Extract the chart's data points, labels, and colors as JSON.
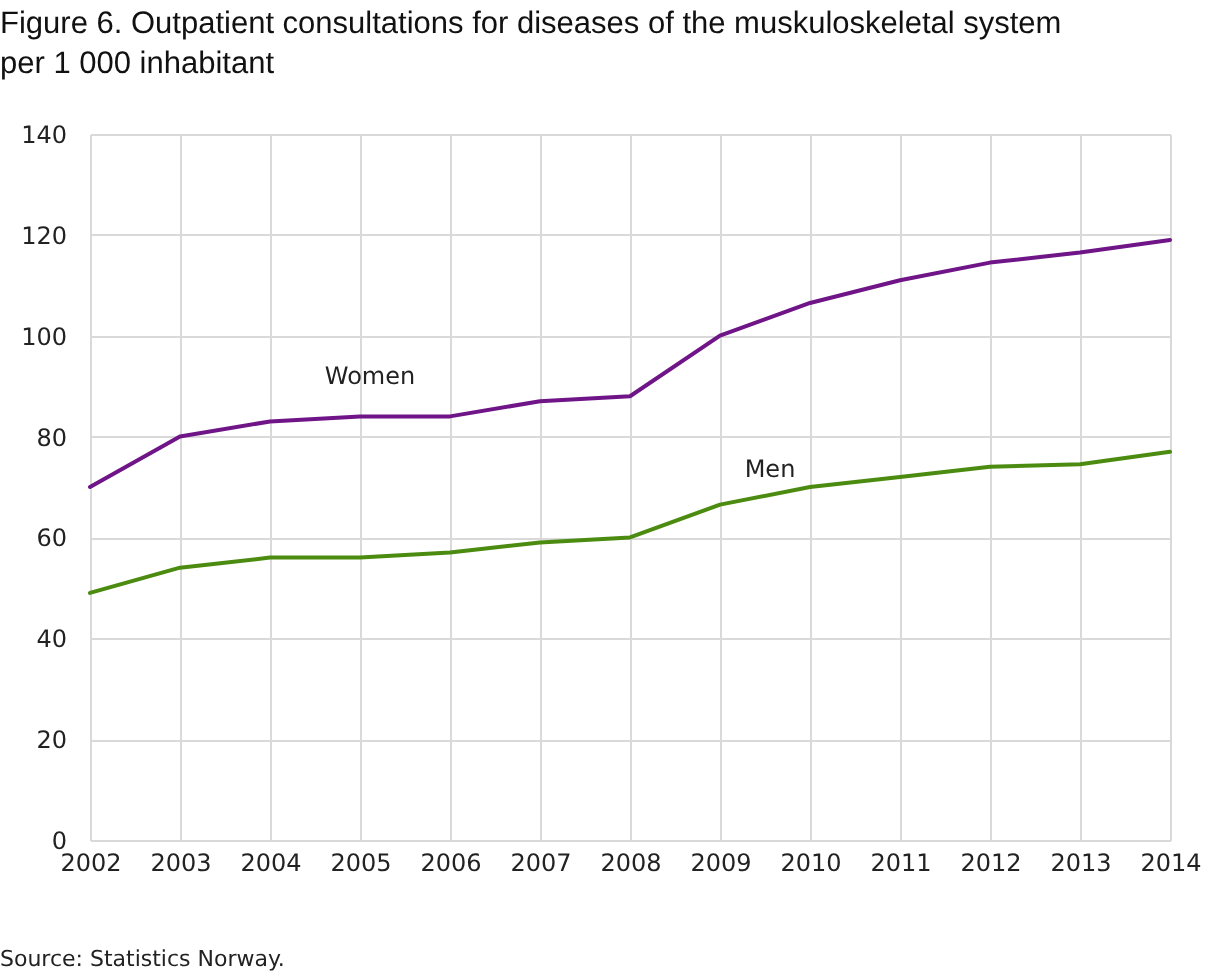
{
  "chart_data": {
    "type": "line",
    "title": "Figure 6. Outpatient consultations for diseases of the muskuloskeletal system per 1 000 inhabitant",
    "annotations": [
      "Source: Statistics Norway."
    ],
    "x": [
      2002,
      2003,
      2004,
      2005,
      2006,
      2007,
      2008,
      2009,
      2010,
      2011,
      2012,
      2013,
      2014
    ],
    "series": [
      {
        "name": "Women",
        "color": "#6f1587",
        "values": [
          70,
          80,
          83,
          84,
          84,
          87,
          88,
          100,
          106.5,
          111,
          114.5,
          116.5,
          119
        ]
      },
      {
        "name": "Men",
        "color": "#4b8b0f",
        "values": [
          49,
          54,
          56,
          56,
          57,
          59,
          60,
          66.5,
          70,
          72,
          74,
          74.5,
          77
        ]
      }
    ],
    "xlim": [
      2002,
      2014
    ],
    "xticks": [
      2002,
      2003,
      2004,
      2005,
      2006,
      2007,
      2008,
      2009,
      2010,
      2011,
      2012,
      2013,
      2014
    ],
    "ylim": [
      0,
      140
    ],
    "yticks": [
      0,
      20,
      40,
      60,
      80,
      100,
      120,
      140
    ],
    "grid": true
  }
}
